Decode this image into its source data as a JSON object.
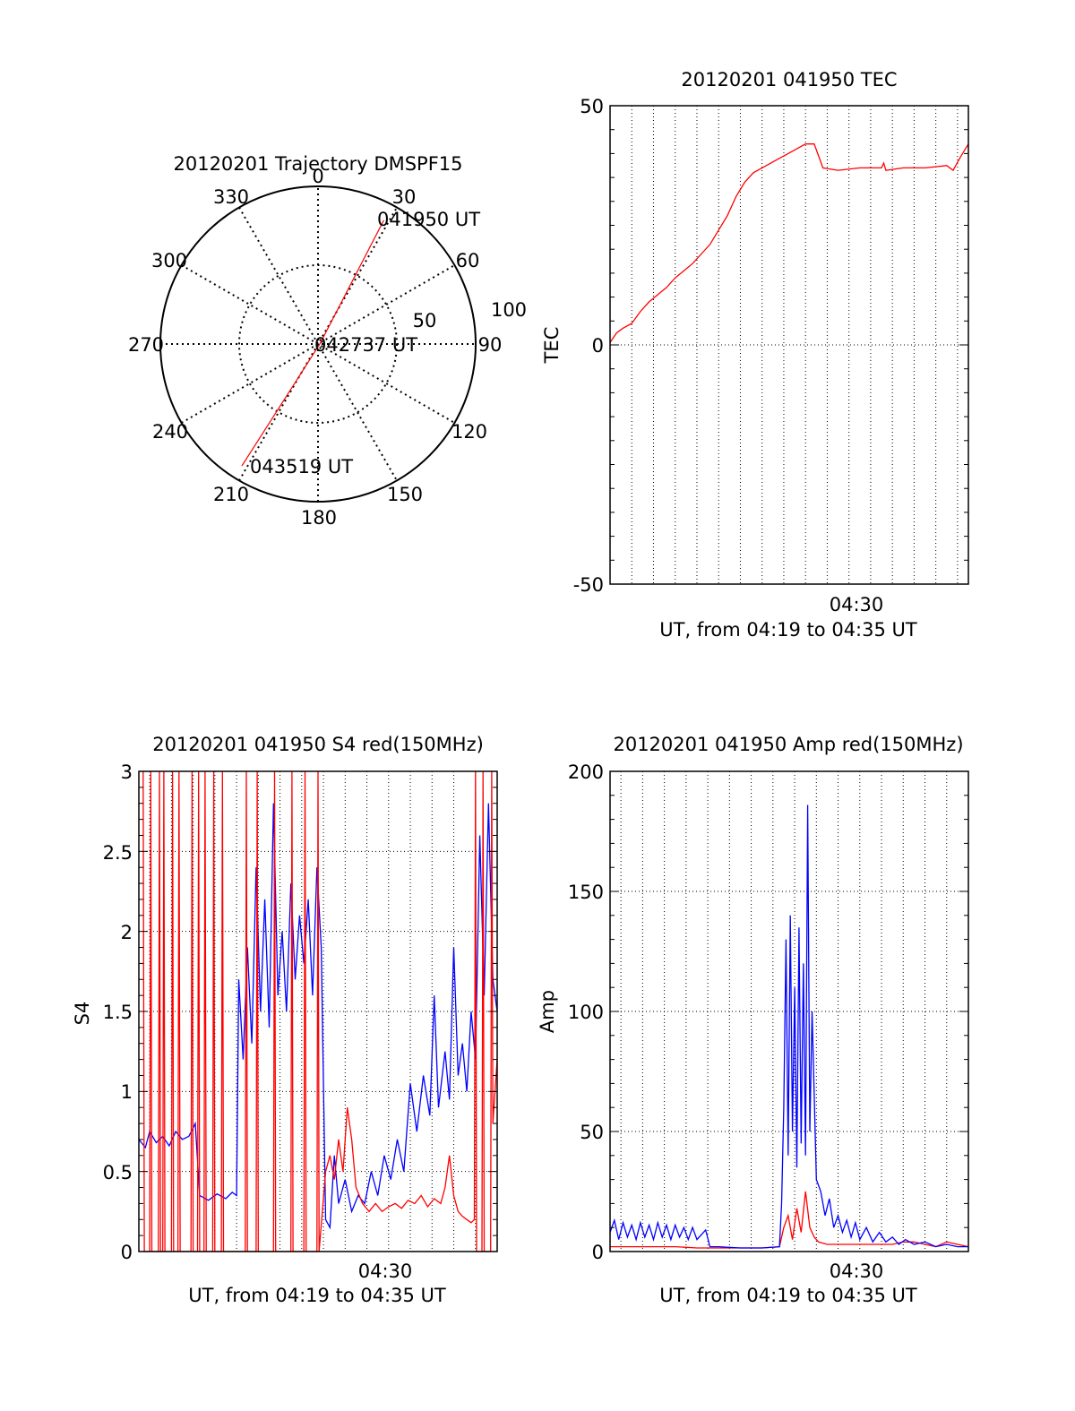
{
  "colors": {
    "red": "#ff0000",
    "blue": "#0000ff",
    "black": "#000000",
    "grid": "#000000"
  },
  "polar": {
    "title": "20120201 Trajectory DMSPF15",
    "type": "polar",
    "azimuth_labels": [
      "0",
      "30",
      "60",
      "90",
      "120",
      "150",
      "180",
      "210",
      "240",
      "270",
      "300",
      "330"
    ],
    "radial_labels": [
      "50",
      "100"
    ],
    "point_labels": {
      "start": "041950 UT",
      "middle": "042737 UT",
      "end": "043519 UT"
    },
    "trajectory": [
      {
        "label": "041950 UT",
        "azimuth": 28,
        "elevation": 10
      },
      {
        "label": "042737 UT",
        "azimuth": 90,
        "elevation": 89
      },
      {
        "label": "043519 UT",
        "azimuth": 212,
        "elevation": 8
      }
    ]
  },
  "tec": {
    "title": "20120201 041950 TEC",
    "ylabel": "TEC",
    "xlabel": "UT, from 04:19 to 04:35 UT",
    "xtick_label": "04:30",
    "yticks": [
      "50",
      "0",
      "-50"
    ],
    "ylim": [
      -50,
      50
    ],
    "xlim": [
      0,
      16.5
    ],
    "series": [
      {
        "color": "#ff0000",
        "points": [
          [
            0.0,
            0.5
          ],
          [
            0.3,
            2.5
          ],
          [
            0.6,
            3.5
          ],
          [
            1.0,
            4.5
          ],
          [
            1.4,
            7
          ],
          [
            1.8,
            9
          ],
          [
            2.2,
            10.5
          ],
          [
            2.6,
            12
          ],
          [
            3.0,
            14
          ],
          [
            3.4,
            15.5
          ],
          [
            3.8,
            17
          ],
          [
            4.2,
            19
          ],
          [
            4.6,
            21
          ],
          [
            5.0,
            24
          ],
          [
            5.4,
            27
          ],
          [
            5.8,
            31
          ],
          [
            6.2,
            34
          ],
          [
            6.6,
            36
          ],
          [
            7.0,
            37
          ],
          [
            7.4,
            38
          ],
          [
            7.8,
            39
          ],
          [
            8.2,
            40
          ],
          [
            8.6,
            41
          ],
          [
            9.0,
            42
          ],
          [
            9.4,
            42
          ],
          [
            9.8,
            37
          ],
          [
            10.5,
            36.5
          ],
          [
            11.5,
            37
          ],
          [
            12.5,
            37
          ],
          [
            12.6,
            38
          ],
          [
            12.7,
            36.5
          ],
          [
            13.5,
            37
          ],
          [
            14.5,
            37
          ],
          [
            15.5,
            37.5
          ],
          [
            15.8,
            36.5
          ],
          [
            16.1,
            39
          ],
          [
            16.5,
            42
          ]
        ]
      }
    ]
  },
  "s4": {
    "title": "20120201 041950 S4 red(150MHz)",
    "ylabel": "S4",
    "xlabel": "UT, from 04:19 to 04:35 UT",
    "xtick_label": "04:30",
    "yticks": [
      "0",
      "0.5",
      "1",
      "1.5",
      "2",
      "2.5",
      "3"
    ],
    "ylim": [
      0,
      3
    ],
    "xlim": [
      0,
      16.5
    ],
    "series": [
      {
        "color": "#0000ff",
        "points": [
          [
            0.0,
            0.7
          ],
          [
            0.3,
            0.65
          ],
          [
            0.5,
            0.75
          ],
          [
            0.8,
            0.68
          ],
          [
            1.1,
            0.72
          ],
          [
            1.4,
            0.66
          ],
          [
            1.7,
            0.75
          ],
          [
            2.0,
            0.7
          ],
          [
            2.3,
            0.72
          ],
          [
            2.6,
            0.8
          ],
          [
            2.8,
            0.35
          ],
          [
            3.2,
            0.32
          ],
          [
            3.6,
            0.36
          ],
          [
            4.0,
            0.33
          ],
          [
            4.3,
            0.37
          ],
          [
            4.5,
            0.35
          ],
          [
            4.6,
            1.7
          ],
          [
            4.8,
            1.2
          ],
          [
            5.0,
            1.9
          ],
          [
            5.2,
            1.3
          ],
          [
            5.4,
            2.4
          ],
          [
            5.6,
            1.5
          ],
          [
            5.8,
            2.2
          ],
          [
            6.0,
            1.4
          ],
          [
            6.2,
            2.8
          ],
          [
            6.4,
            1.6
          ],
          [
            6.6,
            2.0
          ],
          [
            6.8,
            1.5
          ],
          [
            7.0,
            2.3
          ],
          [
            7.2,
            1.7
          ],
          [
            7.4,
            2.1
          ],
          [
            7.6,
            1.8
          ],
          [
            7.8,
            2.2
          ],
          [
            8.0,
            1.6
          ],
          [
            8.2,
            2.4
          ],
          [
            8.4,
            1.9
          ],
          [
            8.6,
            0.2
          ],
          [
            8.8,
            0.15
          ],
          [
            9.0,
            0.6
          ],
          [
            9.2,
            0.3
          ],
          [
            9.5,
            0.45
          ],
          [
            9.8,
            0.25
          ],
          [
            10.1,
            0.35
          ],
          [
            10.4,
            0.3
          ],
          [
            10.7,
            0.5
          ],
          [
            11.0,
            0.35
          ],
          [
            11.3,
            0.6
          ],
          [
            11.6,
            0.45
          ],
          [
            11.9,
            0.7
          ],
          [
            12.2,
            0.5
          ],
          [
            12.5,
            1.05
          ],
          [
            12.8,
            0.75
          ],
          [
            13.1,
            1.1
          ],
          [
            13.4,
            0.85
          ],
          [
            13.6,
            1.6
          ],
          [
            13.8,
            0.9
          ],
          [
            14.1,
            1.25
          ],
          [
            14.3,
            0.95
          ],
          [
            14.5,
            1.9
          ],
          [
            14.7,
            1.1
          ],
          [
            14.9,
            1.3
          ],
          [
            15.1,
            1.0
          ],
          [
            15.3,
            1.5
          ],
          [
            15.5,
            1.2
          ],
          [
            15.7,
            2.6
          ],
          [
            15.9,
            1.6
          ],
          [
            16.1,
            2.8
          ],
          [
            16.3,
            1.7
          ],
          [
            16.5,
            1.5
          ]
        ]
      },
      {
        "color": "#ff0000",
        "points": [
          [
            0.2,
            3
          ],
          [
            0.25,
            0
          ],
          [
            0.5,
            0
          ],
          [
            0.55,
            3
          ],
          [
            0.6,
            0
          ],
          [
            0.9,
            0
          ],
          [
            0.95,
            3
          ],
          [
            1.0,
            0
          ],
          [
            1.1,
            0
          ],
          [
            1.15,
            3
          ],
          [
            1.2,
            0
          ],
          [
            1.5,
            0
          ],
          [
            1.55,
            3
          ],
          [
            1.6,
            0
          ],
          [
            1.8,
            0
          ],
          [
            1.85,
            3
          ],
          [
            1.9,
            0
          ],
          [
            2.4,
            0
          ],
          [
            2.45,
            3
          ],
          [
            2.5,
            0
          ],
          [
            2.7,
            0
          ],
          [
            2.75,
            3
          ],
          [
            2.8,
            0
          ],
          [
            3.0,
            0
          ],
          [
            3.05,
            3
          ],
          [
            3.1,
            0
          ],
          [
            3.4,
            0
          ],
          [
            3.45,
            3
          ],
          [
            3.5,
            0
          ],
          [
            3.8,
            0
          ],
          [
            3.85,
            3
          ],
          [
            3.9,
            0
          ],
          [
            4.9,
            0
          ],
          [
            4.95,
            3
          ],
          [
            5.0,
            0
          ],
          [
            5.4,
            0
          ],
          [
            5.45,
            3
          ],
          [
            5.5,
            0
          ],
          [
            6.2,
            0
          ],
          [
            6.25,
            3
          ],
          [
            6.3,
            0
          ],
          [
            7.0,
            0
          ],
          [
            7.05,
            3
          ],
          [
            7.1,
            0
          ],
          [
            7.6,
            0
          ],
          [
            7.65,
            3
          ],
          [
            7.7,
            0
          ],
          [
            8.2,
            0
          ],
          [
            8.25,
            3
          ],
          [
            8.3,
            0
          ],
          [
            8.6,
            0.5
          ],
          [
            8.8,
            0.6
          ],
          [
            9.0,
            0.45
          ],
          [
            9.2,
            0.7
          ],
          [
            9.4,
            0.5
          ],
          [
            9.6,
            0.9
          ],
          [
            9.8,
            0.7
          ],
          [
            10.0,
            0.4
          ],
          [
            10.3,
            0.3
          ],
          [
            10.6,
            0.25
          ],
          [
            10.9,
            0.3
          ],
          [
            11.2,
            0.25
          ],
          [
            11.5,
            0.28
          ],
          [
            11.8,
            0.3
          ],
          [
            12.1,
            0.27
          ],
          [
            12.4,
            0.32
          ],
          [
            12.7,
            0.3
          ],
          [
            13.0,
            0.35
          ],
          [
            13.3,
            0.28
          ],
          [
            13.6,
            0.33
          ],
          [
            13.9,
            0.3
          ],
          [
            14.1,
            0.4
          ],
          [
            14.3,
            0.6
          ],
          [
            14.5,
            0.35
          ],
          [
            14.7,
            0.25
          ],
          [
            14.9,
            0.22
          ],
          [
            15.1,
            0.2
          ],
          [
            15.3,
            0.18
          ],
          [
            15.45,
            0.2
          ],
          [
            15.5,
            3
          ],
          [
            15.55,
            0
          ],
          [
            15.8,
            0
          ],
          [
            15.85,
            3
          ],
          [
            15.9,
            0
          ],
          [
            16.2,
            0
          ],
          [
            16.25,
            3
          ],
          [
            16.3,
            0.8
          ],
          [
            16.5,
            1.2
          ]
        ]
      }
    ]
  },
  "amp": {
    "title": "20120201 041950 Amp red(150MHz)",
    "ylabel": "Amp",
    "xlabel": "UT, from 04:19 to 04:35 UT",
    "xtick_label": "04:30",
    "yticks": [
      "0",
      "50",
      "100",
      "150",
      "200"
    ],
    "ylim": [
      0,
      200
    ],
    "xlim": [
      0,
      16.5
    ],
    "series": [
      {
        "color": "#ff0000",
        "points": [
          [
            0.0,
            2
          ],
          [
            1.0,
            2
          ],
          [
            2.0,
            2
          ],
          [
            3.0,
            2
          ],
          [
            4.0,
            1.5
          ],
          [
            5.0,
            1.5
          ],
          [
            6.0,
            1.5
          ],
          [
            7.0,
            1.5
          ],
          [
            7.8,
            2
          ],
          [
            8.0,
            10
          ],
          [
            8.2,
            15
          ],
          [
            8.4,
            5
          ],
          [
            8.6,
            18
          ],
          [
            8.8,
            8
          ],
          [
            9.0,
            25
          ],
          [
            9.2,
            10
          ],
          [
            9.4,
            6
          ],
          [
            9.6,
            4
          ],
          [
            10.0,
            3
          ],
          [
            11.0,
            3
          ],
          [
            12.0,
            3
          ],
          [
            13.0,
            3
          ],
          [
            13.5,
            4
          ],
          [
            14.0,
            4
          ],
          [
            14.5,
            3
          ],
          [
            15.0,
            2
          ],
          [
            15.5,
            4
          ],
          [
            16.0,
            3
          ],
          [
            16.5,
            2
          ]
        ]
      },
      {
        "color": "#0000ff",
        "points": [
          [
            0.0,
            8
          ],
          [
            0.2,
            13
          ],
          [
            0.4,
            5
          ],
          [
            0.6,
            12
          ],
          [
            0.8,
            6
          ],
          [
            1.0,
            11
          ],
          [
            1.2,
            5
          ],
          [
            1.4,
            12
          ],
          [
            1.6,
            6
          ],
          [
            1.8,
            11
          ],
          [
            2.0,
            5
          ],
          [
            2.2,
            12
          ],
          [
            2.4,
            6
          ],
          [
            2.6,
            11
          ],
          [
            2.8,
            5
          ],
          [
            3.0,
            11
          ],
          [
            3.2,
            6
          ],
          [
            3.4,
            10
          ],
          [
            3.6,
            5
          ],
          [
            3.8,
            10
          ],
          [
            4.0,
            5
          ],
          [
            4.4,
            9
          ],
          [
            4.6,
            2
          ],
          [
            5.0,
            2
          ],
          [
            6.0,
            1.5
          ],
          [
            7.0,
            1.5
          ],
          [
            7.8,
            2
          ],
          [
            7.9,
            20
          ],
          [
            8.0,
            60
          ],
          [
            8.1,
            130
          ],
          [
            8.2,
            40
          ],
          [
            8.3,
            140
          ],
          [
            8.4,
            50
          ],
          [
            8.5,
            110
          ],
          [
            8.6,
            35
          ],
          [
            8.7,
            135
          ],
          [
            8.8,
            45
          ],
          [
            8.9,
            120
          ],
          [
            9.0,
            40
          ],
          [
            9.1,
            186
          ],
          [
            9.2,
            50
          ],
          [
            9.3,
            100
          ],
          [
            9.5,
            30
          ],
          [
            9.7,
            25
          ],
          [
            9.9,
            15
          ],
          [
            10.1,
            22
          ],
          [
            10.3,
            10
          ],
          [
            10.5,
            15
          ],
          [
            10.7,
            8
          ],
          [
            10.9,
            13
          ],
          [
            11.1,
            6
          ],
          [
            11.3,
            12
          ],
          [
            11.5,
            5
          ],
          [
            11.8,
            10
          ],
          [
            12.1,
            4
          ],
          [
            12.4,
            8
          ],
          [
            12.7,
            4
          ],
          [
            13.0,
            6
          ],
          [
            13.3,
            3
          ],
          [
            13.6,
            5
          ],
          [
            14.0,
            3
          ],
          [
            14.5,
            4
          ],
          [
            15.0,
            2
          ],
          [
            15.5,
            3
          ],
          [
            16.0,
            2
          ],
          [
            16.5,
            2
          ]
        ]
      }
    ]
  }
}
